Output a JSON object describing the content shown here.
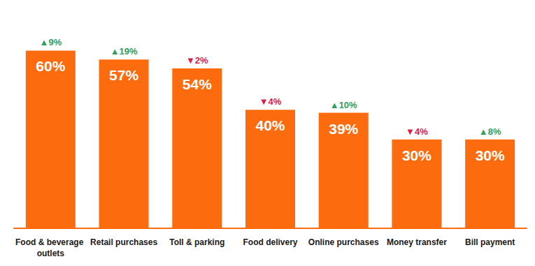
{
  "chart_data": {
    "type": "bar",
    "categories": [
      "Food & beverage outlets",
      "Retail purchases",
      "Toll & parking",
      "Food delivery",
      "Online purchases",
      "Money transfer",
      "Bill payment"
    ],
    "values": [
      60,
      57,
      54,
      40,
      39,
      30,
      30
    ],
    "value_labels": [
      "60%",
      "57%",
      "54%",
      "40%",
      "39%",
      "30%",
      "30%"
    ],
    "changes": [
      9,
      19,
      -2,
      -4,
      10,
      -4,
      8
    ],
    "change_labels": [
      "▲9%",
      "▲19%",
      "▼2%",
      "▼4%",
      "▲10%",
      "▼4%",
      "▲8%"
    ],
    "color": "#fc6c0f",
    "ylim": [
      0,
      70
    ],
    "yticks": [
      0,
      70
    ],
    "grid": false,
    "data_labels": true,
    "tick_labels": "x"
  }
}
